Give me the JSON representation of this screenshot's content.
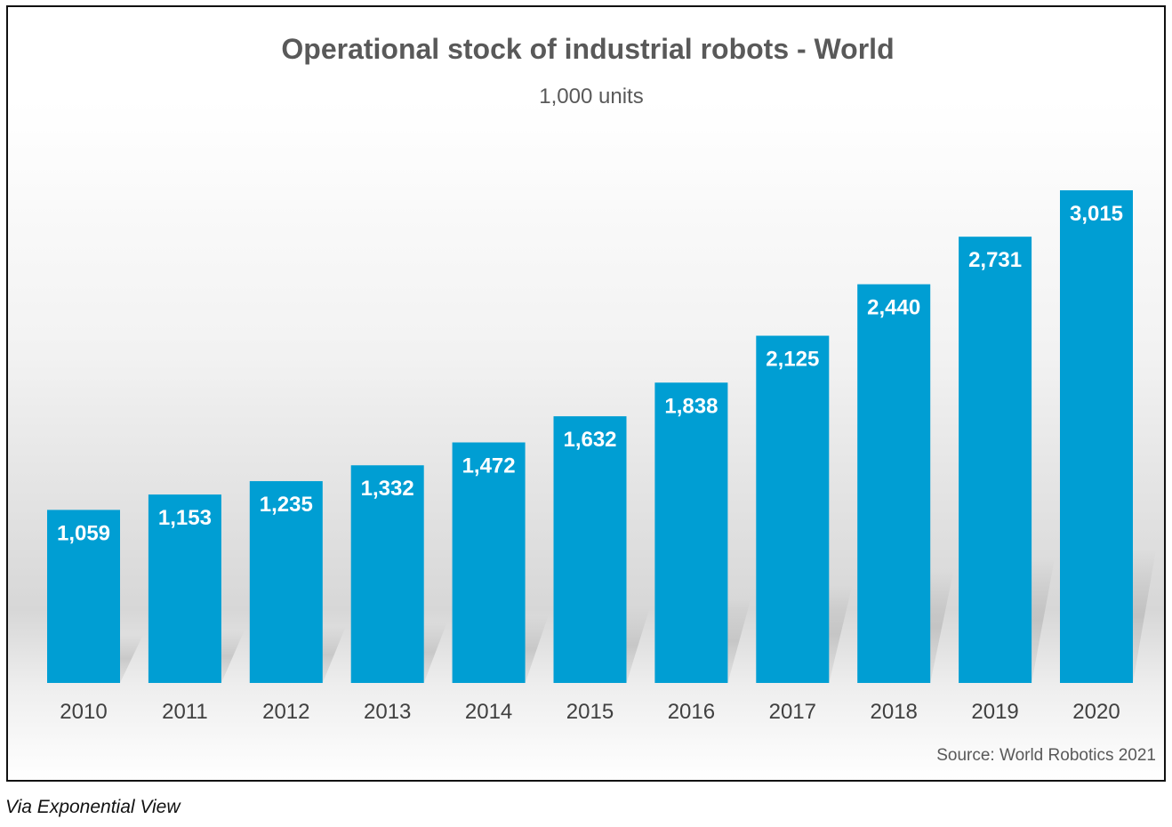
{
  "chart_data": {
    "type": "bar",
    "title": "Operational stock of industrial robots - World",
    "subtitle": "1,000 units",
    "categories": [
      "2010",
      "2011",
      "2012",
      "2013",
      "2014",
      "2015",
      "2016",
      "2017",
      "2018",
      "2019",
      "2020"
    ],
    "values": [
      1059,
      1153,
      1235,
      1332,
      1472,
      1632,
      1838,
      2125,
      2440,
      2731,
      3015
    ],
    "value_labels": [
      "1,059",
      "1,153",
      "1,235",
      "1,332",
      "1,472",
      "1,632",
      "1,838",
      "2,125",
      "2,440",
      "2,731",
      "3,015"
    ],
    "ylim": [
      0,
      3015
    ],
    "grid": false,
    "legend": "none",
    "bar_color": "#009ed3",
    "source": "Source: World Robotics 2021"
  },
  "credit": "Via Exponential View"
}
